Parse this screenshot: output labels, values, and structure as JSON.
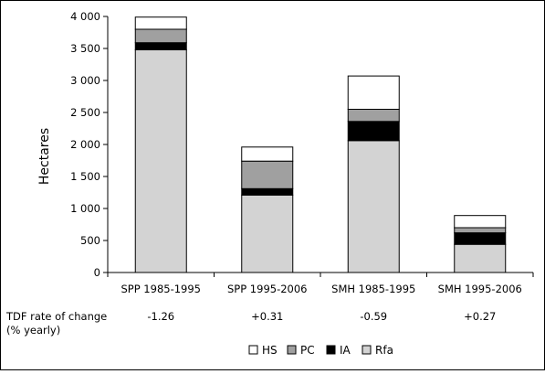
{
  "chart_data": {
    "type": "bar",
    "stacked": true,
    "categories": [
      "SPP 1985-1995",
      "SPP 1995-2006",
      "SMH 1985-1995",
      "SMH 1995-2006"
    ],
    "series": [
      {
        "name": "Rfa",
        "color": "#d3d3d3",
        "values": [
          3480,
          1210,
          2060,
          440
        ]
      },
      {
        "name": "IA",
        "color": "#000000",
        "values": [
          110,
          100,
          300,
          180
        ]
      },
      {
        "name": "PC",
        "color": "#a0a0a0",
        "values": [
          210,
          430,
          190,
          80
        ]
      },
      {
        "name": "HS",
        "color": "#ffffff",
        "values": [
          190,
          220,
          520,
          190
        ]
      }
    ],
    "legend_order": [
      "HS",
      "PC",
      "IA",
      "Rfa"
    ],
    "ylabel": "Hectares",
    "ylim": [
      0,
      4000
    ],
    "yticks": [
      0,
      500,
      1000,
      1500,
      2000,
      2500,
      3000,
      3500,
      4000
    ],
    "ytick_labels": [
      "0",
      "500",
      "1 000",
      "1 500",
      "2 000",
      "2 500",
      "3 000",
      "3 500",
      "4 000"
    ],
    "grid": false,
    "legend_position": "bottom"
  },
  "rate_row": {
    "label_line1": "TDF rate of  change",
    "label_line2": "(% yearly)",
    "values": [
      "-1.26",
      "+0.31",
      "-0.59",
      "+0.27"
    ]
  }
}
